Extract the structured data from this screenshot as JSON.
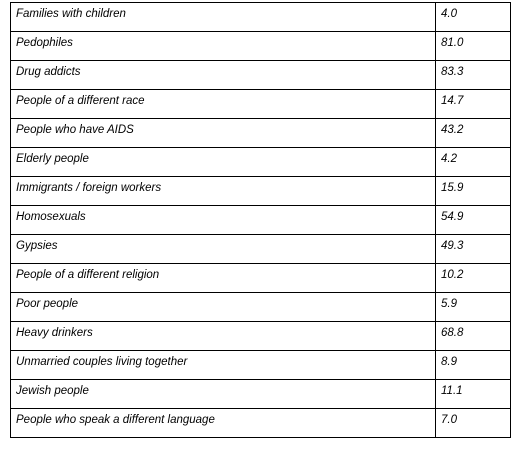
{
  "table": {
    "rows": [
      {
        "label": "Families with children",
        "value": "4.0"
      },
      {
        "label": "Pedophiles",
        "value": "81.0"
      },
      {
        "label": "Drug addicts",
        "value": "83.3"
      },
      {
        "label": "People of a different race",
        "value": "14.7"
      },
      {
        "label": "People who have AIDS",
        "value": "43.2"
      },
      {
        "label": "Elderly people",
        "value": "4.2"
      },
      {
        "label": "Immigrants / foreign workers",
        "value": "15.9"
      },
      {
        "label": "Homosexuals",
        "value": "54.9"
      },
      {
        "label": "Gypsies",
        "value": "49.3"
      },
      {
        "label": "People of a different religion",
        "value": "10.2"
      },
      {
        "label": "Poor people",
        "value": "5.9"
      },
      {
        "label": "Heavy drinkers",
        "value": "68.8"
      },
      {
        "label": "Unmarried couples living together",
        "value": "8.9"
      },
      {
        "label": "Jewish people",
        "value": "11.1"
      },
      {
        "label": "People who speak a different language",
        "value": "7.0"
      }
    ]
  }
}
